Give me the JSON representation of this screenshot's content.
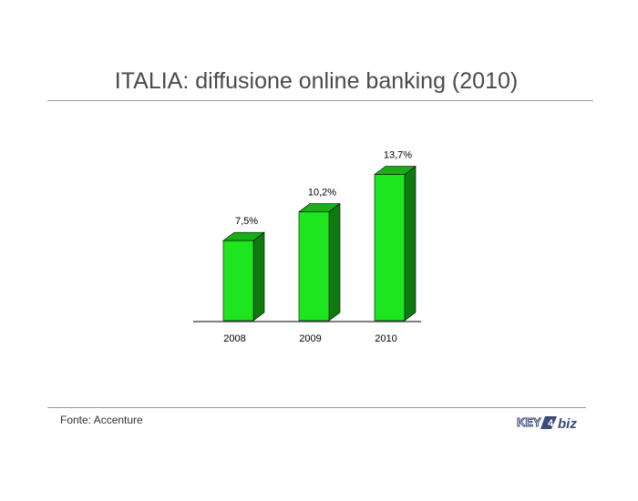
{
  "title": "ITALIA: diffusione online banking (2010)",
  "source": "Fonte: Accenture",
  "logo_text": "KEY4biz",
  "chart_data": {
    "type": "bar",
    "title": "ITALIA: diffusione online banking (2010)",
    "categories": [
      "2008",
      "2009",
      "2010"
    ],
    "values": [
      7.5,
      10.2,
      13.7
    ],
    "value_labels": [
      "7,5%",
      "10,2%",
      "13,7%"
    ],
    "xlabel": "",
    "ylabel": "",
    "ylim": [
      0,
      14
    ],
    "grid": false,
    "legend": "none",
    "bar_color": "#1ee61e",
    "bar_top_color": "#17b017",
    "bar_side_color": "#0f7a0f"
  }
}
